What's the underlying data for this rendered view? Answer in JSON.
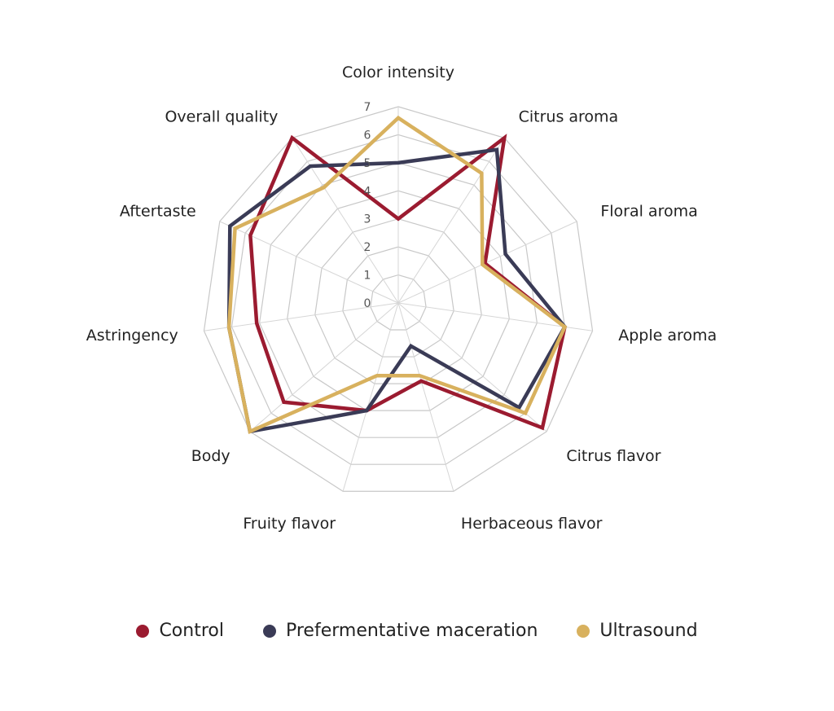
{
  "chart_data": {
    "type": "radar",
    "categories": [
      "Color intensity",
      "Citrus aroma",
      "Floral aroma",
      "Apple aroma",
      "Citrus flavor",
      "Herbaceous flavor",
      "Fruity flavor",
      "Body",
      "Astringency",
      "Aftertaste",
      "Overall quality"
    ],
    "rlim": [
      0,
      7
    ],
    "ticks": [
      "0",
      "1",
      "2",
      "3",
      "4",
      "5",
      "6",
      "7"
    ],
    "grid": true,
    "legend_position": "bottom",
    "series": [
      {
        "name": "Control",
        "color": "#9b1b30",
        "values": [
          3.0,
          7.0,
          3.4,
          6.0,
          6.8,
          2.9,
          4.0,
          5.4,
          5.1,
          5.8,
          7.0
        ]
      },
      {
        "name": "Prefermentative maceration",
        "color": "#3a3b56",
        "values": [
          5.0,
          6.5,
          4.2,
          6.0,
          5.7,
          1.6,
          4.0,
          7.0,
          6.1,
          6.6,
          5.8
        ]
      },
      {
        "name": "Ultrasound",
        "color": "#d8b15e",
        "values": [
          6.6,
          5.5,
          3.3,
          6.0,
          6.0,
          2.7,
          2.7,
          7.0,
          6.1,
          6.4,
          4.9
        ]
      }
    ]
  }
}
